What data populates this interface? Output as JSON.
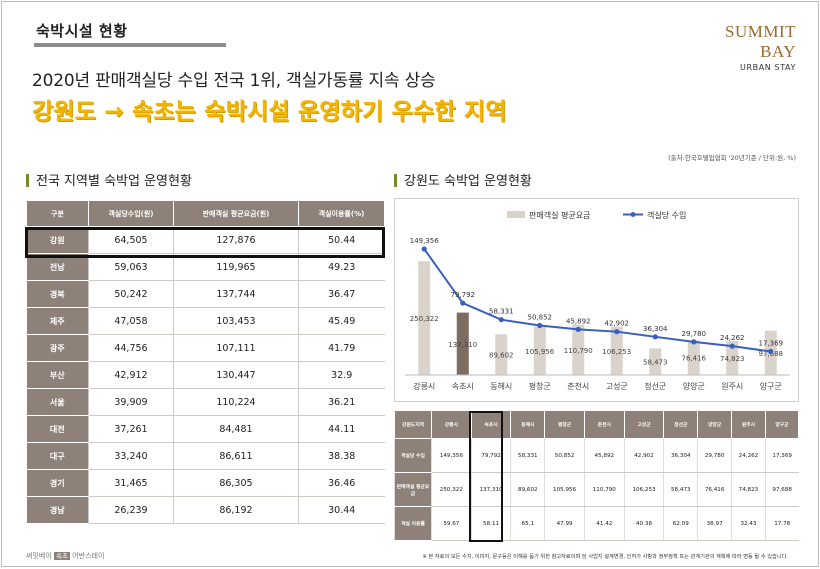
{
  "header": {
    "section_label": "숙박시설 현황",
    "headline": "2020년 판매객실당 수입 전국 1위, 객실가동률 지속 상승",
    "subhead": "강원도 → 속초는 숙박시설 운영하기 우수한 지역",
    "source": "(출처:한국호텔업협회 '20년기준 / 단위:원, %)"
  },
  "logo": {
    "small": "SUMMIT BAY",
    "main": "SUMMIT BAY",
    "sub": "URBAN STAY"
  },
  "left_section": {
    "title": "전국 지역별 숙박업 운영현황",
    "columns": [
      "구분",
      "객실당수입(원)",
      "판매객실 평균요금(원)",
      "객실이용률(%)"
    ],
    "rows": [
      [
        "강원",
        "64,505",
        "127,876",
        "50.44"
      ],
      [
        "전남",
        "59,063",
        "119,965",
        "49.23"
      ],
      [
        "경북",
        "50,242",
        "137,744",
        "36.47"
      ],
      [
        "제주",
        "47,058",
        "103,453",
        "45.49"
      ],
      [
        "광주",
        "44,756",
        "107,111",
        "41.79"
      ],
      [
        "부산",
        "42,912",
        "130,447",
        "32.9"
      ],
      [
        "서울",
        "39,909",
        "110,224",
        "36.21"
      ],
      [
        "대전",
        "37,261",
        "84,481",
        "44.11"
      ],
      [
        "대구",
        "33,240",
        "86,611",
        "38.38"
      ],
      [
        "경기",
        "31,465",
        "86,305",
        "36.46"
      ],
      [
        "경남",
        "26,239",
        "86,192",
        "30.44"
      ]
    ]
  },
  "right_section": {
    "title": "강원도 숙박업 운영현황",
    "table": {
      "header": [
        "강원도지역",
        "강릉시",
        "속초시",
        "동해시",
        "평창군",
        "춘천시",
        "고성군",
        "정선군",
        "양양군",
        "원주시",
        "양구군"
      ],
      "rows": [
        [
          "객실당 수입",
          "149,356",
          "79,792",
          "58,331",
          "50,852",
          "45,892",
          "42,902",
          "36,304",
          "29,780",
          "24,262",
          "17,369"
        ],
        [
          "판매객실 평균요금",
          "250,322",
          "137,310",
          "89,602",
          "105,956",
          "110,790",
          "106,253",
          "58,473",
          "76,416",
          "74,823",
          "97,688"
        ],
        [
          "객실 이용률",
          "59.67",
          "58.11",
          "65.1",
          "47.99",
          "41.42",
          "40.38",
          "62.09",
          "38.97",
          "32.43",
          "17.78"
        ]
      ]
    }
  },
  "chart_data": {
    "type": "bar",
    "categories": [
      "강릉시",
      "속초시",
      "동해시",
      "평창군",
      "춘천시",
      "고성군",
      "정선군",
      "양양군",
      "원주시",
      "양구군"
    ],
    "series": [
      {
        "name": "판매객실 평균요금",
        "type": "bar",
        "values": [
          250322,
          137310,
          89602,
          105956,
          110790,
          106253,
          58473,
          76416,
          74823,
          97688
        ],
        "labels": [
          "250,322",
          "137,310",
          "89,602",
          "105,956",
          "110,790",
          "106,253",
          "58,473",
          "76,416",
          "74,823",
          "97,688"
        ],
        "color": "#d9d3cc",
        "highlight_color": "#7d6c60",
        "highlight_index": 1
      },
      {
        "name": "객실당 수입",
        "type": "line",
        "values": [
          149356,
          79792,
          58331,
          50852,
          45892,
          42902,
          36304,
          29780,
          24262,
          17369
        ],
        "labels": [
          "149,356",
          "79,792",
          "58,331",
          "50,852",
          "45,892",
          "42,902",
          "36,304",
          "29,780",
          "24,262",
          "17,369"
        ],
        "color": "#3a5fc0"
      }
    ],
    "bar_ylim": [
      0,
      330000
    ],
    "line_ylim": [
      0,
      170000
    ],
    "legend_position": "top"
  },
  "footer": {
    "brand": "써밋베이",
    "badge": "속초",
    "brand_suffix": "어반스테이",
    "note": "※ 본 자료의 모든 수치, 이미지, 문구등은 이해를 돕기 위한 참고자료이며 당 사업지 설계변경, 인허가 사항과 정부정책 또는 관계기관의 계획에 따라 변동 될 수 있습니다."
  }
}
